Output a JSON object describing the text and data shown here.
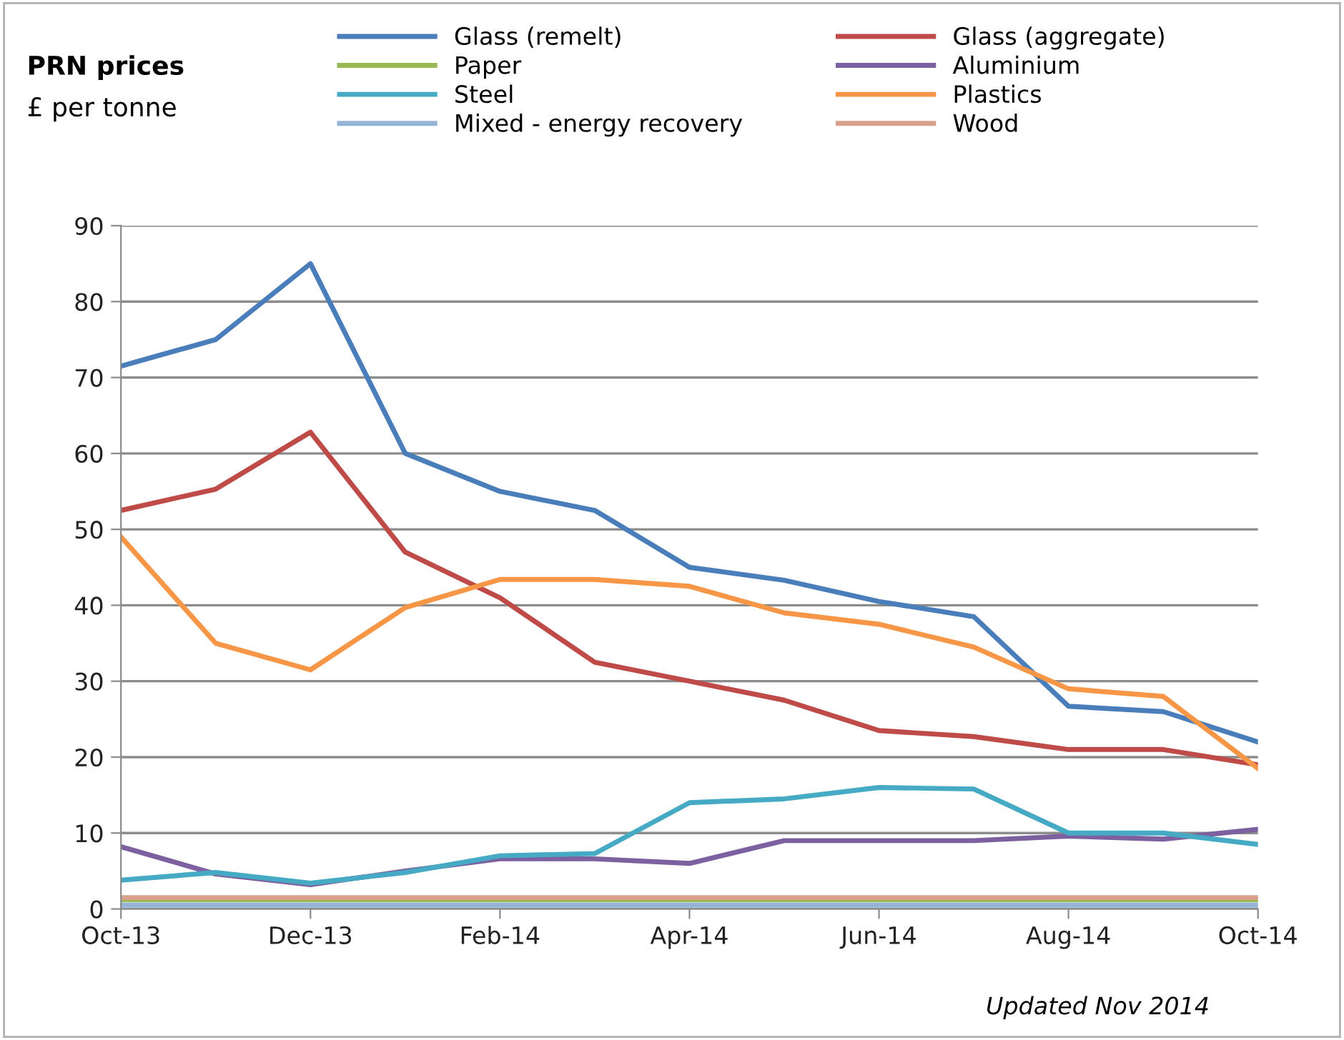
{
  "chart_data": {
    "type": "line",
    "title": "PRN prices",
    "subtitle": "£ per tonne",
    "categories": [
      "Oct-13",
      null,
      "Dec-13",
      null,
      "Feb-14",
      null,
      "Apr-14",
      null,
      "Jun-14",
      null,
      "Aug-14",
      null,
      "Oct-14"
    ],
    "series": [
      {
        "name": "Glass (remelt)",
        "color": "#4a7ebb",
        "values": [
          71.5,
          75,
          85,
          60,
          55,
          52.5,
          45,
          43.3,
          40.5,
          38.5,
          26.7,
          26,
          22
        ]
      },
      {
        "name": "Glass (aggregate)",
        "color": "#be4b48",
        "values": [
          52.5,
          55.3,
          62.8,
          47,
          41,
          32.5,
          30,
          27.5,
          23.5,
          22.7,
          21,
          21,
          19
        ]
      },
      {
        "name": "Paper",
        "color": "#98b954",
        "values": [
          1.2,
          1.2,
          1.2,
          1.2,
          1.2,
          1.2,
          1.2,
          1.2,
          1.2,
          1.2,
          1.2,
          1.2,
          1.2
        ]
      },
      {
        "name": "Aluminium",
        "color": "#7d60a0",
        "values": [
          8.2,
          4.6,
          3.2,
          5,
          6.6,
          6.6,
          6,
          9,
          9,
          9,
          9.6,
          9.2,
          10.5
        ]
      },
      {
        "name": "Steel",
        "color": "#46aac5",
        "values": [
          3.8,
          4.8,
          3.4,
          4.8,
          7,
          7.3,
          14,
          14.5,
          16,
          15.8,
          10,
          10,
          8.5
        ]
      },
      {
        "name": "Plastics",
        "color": "#f79646",
        "values": [
          49,
          35,
          31.5,
          39.7,
          43.4,
          43.4,
          42.5,
          39,
          37.5,
          34.5,
          29,
          28,
          18.5
        ]
      },
      {
        "name": "Mixed - energy recovery",
        "color": "#95b3d7",
        "values": [
          0.5,
          0.5,
          0.5,
          0.5,
          0.5,
          0.5,
          0.5,
          0.5,
          0.5,
          0.5,
          0.5,
          0.5,
          0.5
        ]
      },
      {
        "name": "Wood",
        "color": "#d9a08c",
        "values": [
          1.5,
          1.5,
          1.5,
          1.5,
          1.5,
          1.5,
          1.5,
          1.5,
          1.5,
          1.5,
          1.5,
          1.5,
          1.5
        ]
      }
    ],
    "ylim": [
      0,
      90
    ],
    "yticks": [
      0,
      10,
      20,
      30,
      40,
      50,
      60,
      70,
      80,
      90
    ],
    "grid": "y",
    "legend": "top",
    "marker": "none",
    "line_style": "solid",
    "annotations": [
      "Updated Nov 2014"
    ]
  }
}
